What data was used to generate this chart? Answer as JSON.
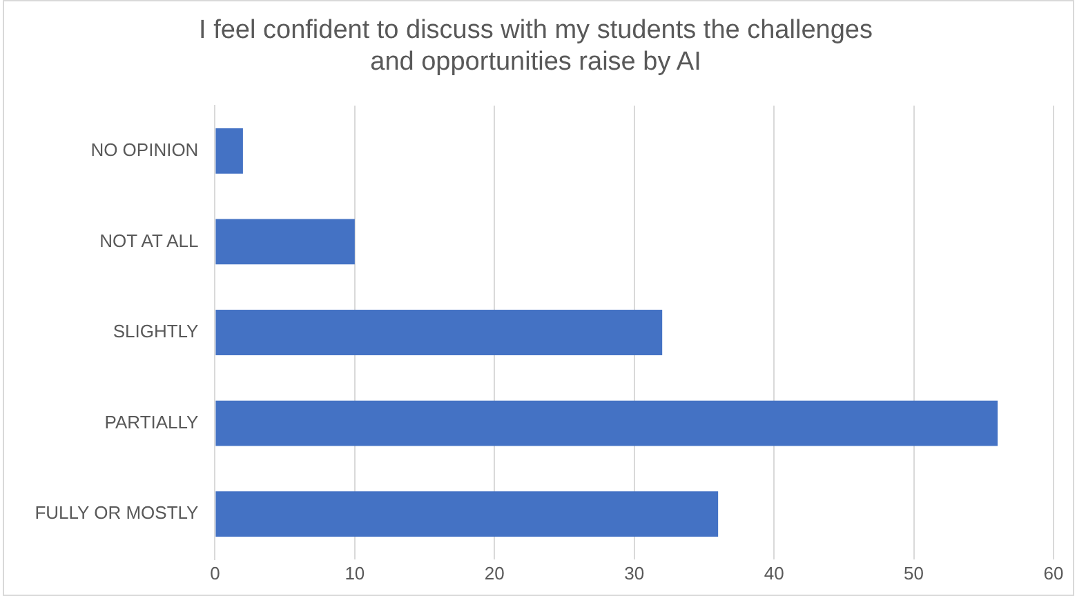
{
  "chart_data": {
    "type": "bar",
    "orientation": "horizontal",
    "title": "I feel confident to discuss with my students the challenges\nand opportunities raise by AI",
    "categories": [
      "NO OPINION",
      "NOT AT ALL",
      "SLIGHTLY",
      "PARTIALLY",
      "FULLY OR MOSTLY"
    ],
    "values": [
      2,
      10,
      32,
      56,
      36
    ],
    "color": "#4472c4",
    "xlim": [
      0,
      60
    ],
    "xticks": [
      0,
      10,
      20,
      30,
      40,
      50,
      60
    ],
    "grid": "x",
    "legend": false
  }
}
